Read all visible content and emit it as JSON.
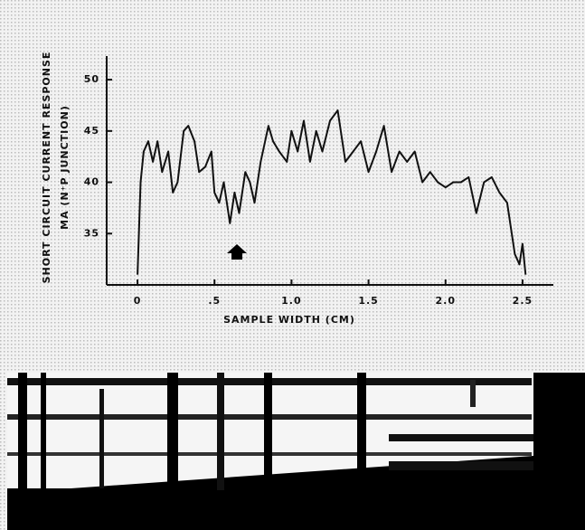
{
  "chart_data": {
    "type": "line",
    "ylabel": "SHORT CIRCUIT CURRENT RESPONSE",
    "ylabel2": "MA (N⁺P JUNCTION)",
    "xlabel": "SAMPLE WIDTH (CM)",
    "xlim": [
      -0.2,
      2.7
    ],
    "ylim": [
      30,
      52.3
    ],
    "xticks": [
      0,
      {
        "value": 0.5,
        "label": ".5"
      },
      {
        "value": 1,
        "label": "1.0"
      },
      {
        "value": 1.5,
        "label": "1.5"
      },
      {
        "value": 2,
        "label": "2.0"
      },
      {
        "value": 2.5,
        "label": "2.5"
      }
    ],
    "yticks": [
      35,
      40,
      45,
      50
    ],
    "grid": false,
    "series": [
      {
        "color": "#111111",
        "x": [
          0,
          0.02,
          0.04,
          0.07,
          0.1,
          0.13,
          0.16,
          0.2,
          0.23,
          0.26,
          0.3,
          0.33,
          0.37,
          0.4,
          0.44,
          0.48,
          0.5,
          0.53,
          0.56,
          0.6,
          0.63,
          0.66,
          0.7,
          0.73,
          0.76,
          0.8,
          0.85,
          0.88,
          0.92,
          0.97,
          1.0,
          1.04,
          1.08,
          1.12,
          1.16,
          1.2,
          1.25,
          1.3,
          1.35,
          1.4,
          1.45,
          1.5,
          1.55,
          1.6,
          1.65,
          1.7,
          1.75,
          1.8,
          1.85,
          1.9,
          1.95,
          2.0,
          2.05,
          2.1,
          2.15,
          2.2,
          2.25,
          2.3,
          2.35,
          2.4,
          2.45,
          2.48,
          2.5,
          2.52
        ],
        "values": [
          31,
          40,
          43,
          44,
          42,
          44,
          41,
          43,
          39,
          40,
          45,
          45.5,
          44,
          41,
          41.5,
          43,
          39,
          38,
          40,
          36,
          39,
          37,
          41,
          40,
          38,
          42,
          45.5,
          44,
          43,
          42,
          45,
          43,
          46,
          42,
          45,
          43,
          46,
          47,
          42,
          43,
          44,
          41,
          43,
          45.5,
          41,
          43,
          42,
          43,
          40,
          41,
          40,
          39.5,
          40,
          40,
          40.5,
          37,
          40,
          40.5,
          39,
          38,
          33,
          32,
          34,
          31
        ]
      }
    ]
  }
}
